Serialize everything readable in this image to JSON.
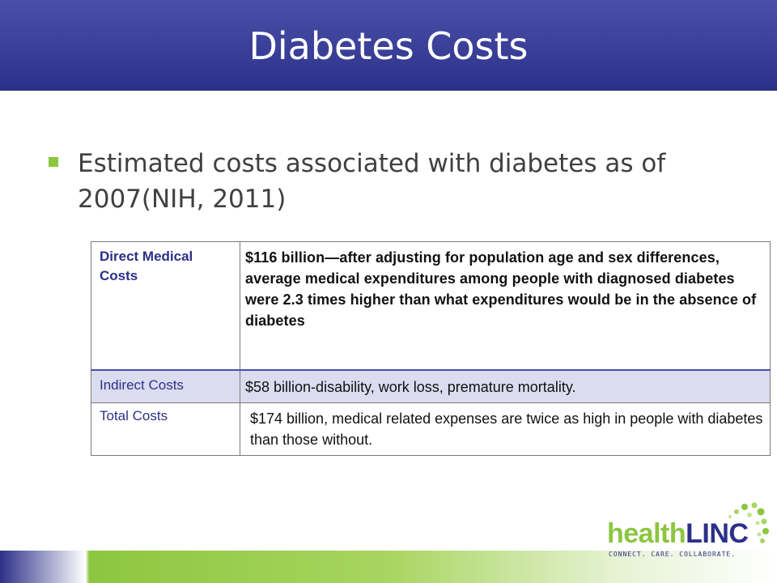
{
  "slide": {
    "title": "Diabetes Costs",
    "bullet": "Estimated costs associated with diabetes as of 2007(NIH, 2011)"
  },
  "table": {
    "rows": [
      {
        "label": "Direct Medical Costs",
        "value": "$116 billion—after adjusting for population age and sex differences, average medical expenditures among people with diagnosed diabetes were 2.3 times higher than what expenditures would be in the absence of diabetes"
      },
      {
        "label": "Indirect Costs",
        "value": "$58 billion-disability,  work loss, premature mortality."
      },
      {
        "label": "Total Costs",
        "value": "$174 billion, medical related expenses are twice as high in people with diabetes than those without."
      }
    ]
  },
  "logo": {
    "health": "health",
    "linc": "LINC",
    "tagline": "CONNECT. CARE. COLLABORATE."
  },
  "colors": {
    "title_bar": "#3a3f98",
    "accent_green": "#8cc63f",
    "label_blue": "#2c3088"
  }
}
